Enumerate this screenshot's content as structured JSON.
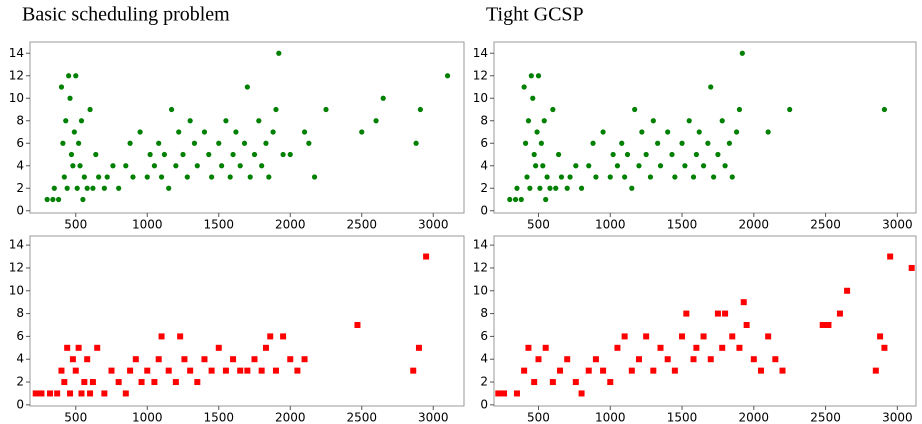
{
  "chart_data": [
    {
      "type": "scatter",
      "title": "Basic scheduling problem",
      "marker": "circle",
      "color": "#008000",
      "x": [
        300,
        340,
        350,
        380,
        400,
        410,
        420,
        430,
        440,
        450,
        460,
        470,
        480,
        490,
        500,
        510,
        520,
        530,
        540,
        550,
        560,
        580,
        600,
        620,
        640,
        660,
        700,
        720,
        760,
        800,
        850,
        880,
        900,
        950,
        1000,
        1020,
        1050,
        1080,
        1100,
        1120,
        1150,
        1170,
        1200,
        1220,
        1250,
        1280,
        1300,
        1330,
        1350,
        1400,
        1430,
        1450,
        1500,
        1520,
        1550,
        1580,
        1600,
        1620,
        1650,
        1680,
        1700,
        1720,
        1750,
        1780,
        1800,
        1830,
        1850,
        1880,
        1900,
        1920,
        1950,
        2000,
        2100,
        2130,
        2170,
        2250,
        2500,
        2600,
        2650,
        2880,
        2910,
        3100
      ],
      "values": [
        1,
        1,
        2,
        1,
        11,
        6,
        3,
        8,
        2,
        12,
        10,
        5,
        4,
        7,
        12,
        2,
        6,
        4,
        8,
        1,
        3,
        2,
        9,
        2,
        5,
        3,
        2,
        3,
        4,
        2,
        4,
        6,
        3,
        7,
        3,
        5,
        4,
        6,
        3,
        5,
        2,
        9,
        4,
        7,
        5,
        3,
        8,
        6,
        4,
        7,
        5,
        3,
        6,
        4,
        8,
        3,
        5,
        7,
        4,
        6,
        11,
        3,
        5,
        8,
        4,
        6,
        3,
        7,
        9,
        14,
        5,
        5,
        7,
        6,
        3,
        9,
        7,
        8,
        10,
        6,
        9,
        12
      ],
      "xlim": [
        180,
        3215
      ],
      "ylim": [
        -0.2,
        15
      ],
      "xticks": [
        500,
        1000,
        1500,
        2000,
        2500,
        3000
      ],
      "yticks": [
        0,
        2,
        4,
        6,
        8,
        10,
        12,
        14
      ]
    },
    {
      "type": "scatter",
      "title": "Tight GCSP",
      "marker": "circle",
      "color": "#008000",
      "x": [
        300,
        340,
        350,
        380,
        400,
        410,
        420,
        430,
        440,
        450,
        460,
        470,
        480,
        490,
        500,
        510,
        520,
        530,
        540,
        550,
        560,
        580,
        600,
        620,
        640,
        660,
        700,
        720,
        760,
        800,
        850,
        880,
        900,
        950,
        1000,
        1020,
        1050,
        1080,
        1100,
        1120,
        1150,
        1170,
        1200,
        1220,
        1250,
        1280,
        1300,
        1330,
        1350,
        1400,
        1430,
        1450,
        1500,
        1520,
        1550,
        1580,
        1600,
        1620,
        1650,
        1680,
        1700,
        1720,
        1750,
        1780,
        1800,
        1830,
        1850,
        1880,
        1900,
        1920,
        2100,
        2250,
        2910
      ],
      "values": [
        1,
        1,
        2,
        1,
        11,
        6,
        3,
        8,
        2,
        12,
        10,
        5,
        4,
        7,
        12,
        2,
        6,
        4,
        8,
        1,
        3,
        2,
        9,
        2,
        5,
        3,
        2,
        3,
        4,
        2,
        4,
        6,
        3,
        7,
        3,
        5,
        4,
        6,
        3,
        5,
        2,
        9,
        4,
        7,
        5,
        3,
        8,
        6,
        4,
        7,
        5,
        3,
        6,
        4,
        8,
        3,
        5,
        7,
        4,
        6,
        11,
        3,
        5,
        8,
        4,
        6,
        3,
        7,
        9,
        14,
        7,
        9,
        9
      ],
      "xlim": [
        190,
        3130
      ],
      "ylim": [
        -0.2,
        15
      ],
      "xticks": [
        500,
        1000,
        1500,
        2000,
        2500,
        3000
      ],
      "yticks": [
        0,
        2,
        4,
        6,
        8,
        10,
        12,
        14
      ]
    },
    {
      "type": "scatter",
      "marker": "square",
      "color": "#ff0000",
      "x": [
        220,
        260,
        320,
        370,
        400,
        420,
        440,
        460,
        480,
        500,
        520,
        540,
        560,
        580,
        600,
        620,
        650,
        700,
        750,
        800,
        850,
        880,
        920,
        960,
        1000,
        1050,
        1080,
        1100,
        1150,
        1200,
        1230,
        1260,
        1300,
        1350,
        1400,
        1450,
        1500,
        1550,
        1600,
        1650,
        1700,
        1750,
        1800,
        1830,
        1860,
        1900,
        1950,
        2000,
        2050,
        2100,
        2470,
        2860,
        2900,
        2950
      ],
      "values": [
        1,
        1,
        1,
        1,
        3,
        2,
        5,
        1,
        4,
        3,
        5,
        1,
        2,
        4,
        1,
        2,
        5,
        1,
        3,
        2,
        1,
        3,
        4,
        2,
        3,
        2,
        4,
        6,
        3,
        2,
        6,
        4,
        3,
        2,
        4,
        3,
        5,
        3,
        4,
        3,
        3,
        4,
        3,
        5,
        6,
        3,
        6,
        4,
        3,
        4,
        7,
        3,
        5,
        13
      ],
      "xlim": [
        180,
        3215
      ],
      "ylim": [
        -0.1,
        14.8
      ],
      "xticks": [
        500,
        1000,
        1500,
        2000,
        2500,
        3000
      ],
      "yticks": [
        0,
        2,
        4,
        6,
        8,
        10,
        12,
        14
      ]
    },
    {
      "type": "scatter",
      "marker": "square",
      "color": "#ff0000",
      "x": [
        220,
        260,
        350,
        400,
        430,
        470,
        500,
        550,
        600,
        650,
        700,
        760,
        800,
        850,
        900,
        950,
        1000,
        1050,
        1100,
        1150,
        1200,
        1250,
        1300,
        1350,
        1400,
        1450,
        1500,
        1530,
        1580,
        1600,
        1650,
        1700,
        1750,
        1780,
        1800,
        1850,
        1900,
        1930,
        1950,
        2000,
        2050,
        2100,
        2150,
        2200,
        2480,
        2520,
        2600,
        2650,
        2850,
        2880,
        2910,
        2950,
        3100
      ],
      "values": [
        1,
        1,
        1,
        3,
        5,
        2,
        4,
        5,
        2,
        3,
        4,
        2,
        1,
        3,
        4,
        3,
        2,
        5,
        6,
        3,
        4,
        6,
        3,
        5,
        4,
        3,
        6,
        8,
        4,
        5,
        6,
        4,
        8,
        5,
        8,
        6,
        5,
        9,
        7,
        4,
        3,
        6,
        4,
        3,
        7,
        7,
        8,
        10,
        3,
        6,
        5,
        13,
        12
      ],
      "xlim": [
        190,
        3130
      ],
      "ylim": [
        -0.1,
        14.8
      ],
      "xticks": [
        500,
        1000,
        1500,
        2000,
        2500,
        3000
      ],
      "yticks": [
        0,
        2,
        4,
        6,
        8,
        10,
        12,
        14
      ]
    }
  ]
}
